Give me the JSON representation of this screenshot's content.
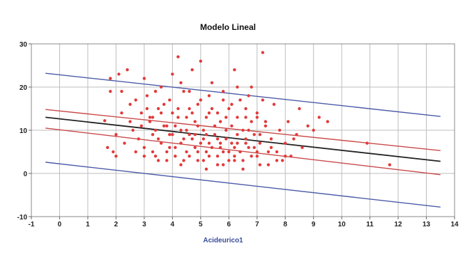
{
  "chart_data": {
    "type": "scatter",
    "title": "Modelo Lineal",
    "xlabel": "Acideurico1",
    "ylabel": "",
    "xlim": [
      -1,
      14
    ],
    "ylim": [
      -10,
      30
    ],
    "x_ticks": [
      -1,
      0,
      1,
      2,
      3,
      4,
      5,
      6,
      7,
      8,
      9,
      10,
      11,
      12,
      13,
      14
    ],
    "y_ticks": [
      -10,
      0,
      10,
      20,
      30
    ],
    "grid": true,
    "legend": "none",
    "colors": {
      "points": "#e23a3a",
      "fit": "#222222",
      "confidence": "#c94848",
      "prediction": "#4a5aa8",
      "grid": "#bdbdbd",
      "axis_label": "#3a4c9a"
    },
    "lines": [
      {
        "role": "fit",
        "x": [
          -0.5,
          13.5
        ],
        "y": [
          13.0,
          2.8
        ]
      },
      {
        "role": "confidence-upper",
        "x": [
          -0.5,
          13.5
        ],
        "y": [
          14.8,
          5.3
        ]
      },
      {
        "role": "confidence-lower",
        "x": [
          -0.5,
          13.5
        ],
        "y": [
          10.5,
          -0.3
        ]
      },
      {
        "role": "prediction-upper",
        "x": [
          -0.5,
          13.5
        ],
        "y": [
          23.2,
          13.2
        ]
      },
      {
        "role": "prediction-lower",
        "x": [
          -0.5,
          13.5
        ],
        "y": [
          2.6,
          -7.8
        ]
      }
    ],
    "points": [
      [
        1.6,
        12.2
      ],
      [
        1.7,
        6.0
      ],
      [
        1.8,
        22.0
      ],
      [
        1.8,
        19.0
      ],
      [
        1.9,
        5.0
      ],
      [
        2.0,
        4.0
      ],
      [
        2.0,
        9.0
      ],
      [
        2.1,
        23.0
      ],
      [
        2.2,
        14.0
      ],
      [
        2.3,
        7.0
      ],
      [
        2.4,
        24.0
      ],
      [
        2.5,
        12.0
      ],
      [
        2.5,
        16.0
      ],
      [
        2.6,
        10.0
      ],
      [
        2.7,
        5.0
      ],
      [
        2.8,
        8.0
      ],
      [
        2.9,
        11.0
      ],
      [
        3.0,
        22.0
      ],
      [
        3.0,
        6.0
      ],
      [
        3.1,
        18.0
      ],
      [
        3.2,
        13.0
      ],
      [
        3.3,
        9.0
      ],
      [
        3.4,
        4.0
      ],
      [
        3.5,
        15.0
      ],
      [
        3.6,
        20.0
      ],
      [
        3.6,
        7.0
      ],
      [
        3.7,
        11.0
      ],
      [
        3.8,
        3.0
      ],
      [
        3.9,
        17.0
      ],
      [
        4.0,
        23.0
      ],
      [
        4.0,
        9.0
      ],
      [
        4.1,
        6.0
      ],
      [
        4.2,
        27.0
      ],
      [
        4.2,
        13.0
      ],
      [
        4.3,
        2.0
      ],
      [
        4.4,
        19.0
      ],
      [
        4.5,
        10.0
      ],
      [
        4.5,
        5.0
      ],
      [
        4.6,
        15.0
      ],
      [
        4.7,
        24.0
      ],
      [
        4.7,
        8.0
      ],
      [
        4.8,
        12.0
      ],
      [
        4.9,
        3.0
      ],
      [
        5.0,
        26.0
      ],
      [
        5.0,
        17.0
      ],
      [
        5.0,
        7.0
      ],
      [
        5.1,
        10.0
      ],
      [
        5.2,
        1.0
      ],
      [
        5.3,
        14.0
      ],
      [
        5.4,
        21.0
      ],
      [
        5.4,
        6.0
      ],
      [
        5.5,
        9.0
      ],
      [
        5.6,
        4.0
      ],
      [
        5.7,
        12.0
      ],
      [
        5.8,
        19.0
      ],
      [
        5.8,
        2.0
      ],
      [
        5.9,
        8.0
      ],
      [
        6.0,
        15.0
      ],
      [
        6.0,
        5.0
      ],
      [
        6.1,
        11.0
      ],
      [
        6.2,
        24.0
      ],
      [
        6.2,
        3.0
      ],
      [
        6.3,
        7.0
      ],
      [
        6.4,
        17.0
      ],
      [
        6.5,
        10.0
      ],
      [
        6.5,
        1.0
      ],
      [
        6.6,
        13.0
      ],
      [
        6.7,
        6.0
      ],
      [
        6.8,
        20.0
      ],
      [
        6.9,
        9.0
      ],
      [
        7.0,
        4.0
      ],
      [
        7.0,
        14.0
      ],
      [
        7.1,
        7.0
      ],
      [
        7.2,
        28.0
      ],
      [
        7.3,
        11.0
      ],
      [
        7.4,
        2.0
      ],
      [
        7.5,
        8.0
      ],
      [
        7.6,
        16.0
      ],
      [
        7.7,
        5.0
      ],
      [
        7.8,
        10.0
      ],
      [
        7.9,
        3.0
      ],
      [
        8.0,
        7.0
      ],
      [
        8.1,
        12.0
      ],
      [
        8.2,
        4.0
      ],
      [
        8.4,
        9.0
      ],
      [
        8.5,
        15.0
      ],
      [
        8.6,
        6.0
      ],
      [
        8.8,
        11.0
      ],
      [
        9.0,
        10.0
      ],
      [
        9.2,
        13.0
      ],
      [
        9.5,
        12.0
      ],
      [
        10.9,
        7.0
      ],
      [
        11.7,
        2.0
      ],
      [
        3.2,
        12.0
      ],
      [
        3.4,
        10.0
      ],
      [
        3.5,
        8.0
      ],
      [
        3.8,
        11.0
      ],
      [
        3.9,
        9.0
      ],
      [
        4.1,
        11.0
      ],
      [
        4.3,
        10.0
      ],
      [
        4.4,
        8.0
      ],
      [
        4.6,
        9.0
      ],
      [
        4.8,
        9.0
      ],
      [
        4.9,
        11.0
      ],
      [
        5.1,
        8.0
      ],
      [
        5.2,
        9.0
      ],
      [
        5.3,
        7.0
      ],
      [
        5.5,
        11.0
      ],
      [
        5.6,
        8.0
      ],
      [
        5.7,
        6.0
      ],
      [
        5.9,
        10.0
      ],
      [
        6.1,
        7.0
      ],
      [
        6.3,
        9.0
      ],
      [
        6.4,
        5.0
      ],
      [
        6.6,
        8.0
      ],
      [
        6.7,
        10.0
      ],
      [
        6.9,
        6.0
      ],
      [
        7.1,
        9.0
      ],
      [
        2.9,
        14.0
      ],
      [
        3.1,
        15.0
      ],
      [
        3.3,
        13.0
      ],
      [
        3.6,
        14.0
      ],
      [
        3.7,
        16.0
      ],
      [
        4.0,
        14.0
      ],
      [
        4.2,
        15.0
      ],
      [
        4.5,
        13.0
      ],
      [
        4.7,
        14.0
      ],
      [
        4.9,
        16.0
      ],
      [
        5.2,
        13.0
      ],
      [
        5.4,
        15.0
      ],
      [
        5.6,
        14.0
      ],
      [
        5.9,
        13.0
      ],
      [
        6.1,
        16.0
      ],
      [
        6.3,
        13.0
      ],
      [
        6.6,
        15.0
      ],
      [
        6.8,
        12.0
      ],
      [
        7.0,
        13.0
      ],
      [
        7.3,
        12.0
      ],
      [
        3.0,
        4.0
      ],
      [
        3.3,
        5.0
      ],
      [
        3.5,
        3.0
      ],
      [
        3.8,
        5.0
      ],
      [
        4.1,
        4.0
      ],
      [
        4.4,
        3.0
      ],
      [
        4.6,
        4.0
      ],
      [
        4.9,
        5.0
      ],
      [
        5.1,
        3.0
      ],
      [
        5.3,
        4.0
      ],
      [
        5.6,
        2.0
      ],
      [
        5.8,
        5.0
      ],
      [
        6.0,
        3.0
      ],
      [
        6.2,
        4.0
      ],
      [
        6.5,
        3.0
      ],
      [
        6.8,
        4.0
      ],
      [
        7.1,
        2.0
      ],
      [
        7.4,
        5.0
      ],
      [
        7.7,
        3.0
      ],
      [
        8.0,
        4.0
      ],
      [
        2.2,
        19.0
      ],
      [
        2.7,
        17.0
      ],
      [
        3.4,
        19.0
      ],
      [
        4.3,
        21.0
      ],
      [
        4.6,
        19.0
      ],
      [
        5.3,
        18.0
      ],
      [
        5.8,
        17.0
      ],
      [
        6.3,
        20.0
      ],
      [
        6.7,
        18.0
      ],
      [
        7.2,
        17.0
      ],
      [
        3.9,
        6.0
      ],
      [
        4.3,
        7.0
      ],
      [
        4.8,
        6.0
      ],
      [
        5.2,
        5.0
      ],
      [
        5.7,
        7.0
      ],
      [
        6.2,
        6.0
      ],
      [
        6.6,
        7.0
      ],
      [
        7.0,
        5.0
      ],
      [
        7.5,
        6.0
      ],
      [
        8.3,
        8.0
      ]
    ]
  }
}
